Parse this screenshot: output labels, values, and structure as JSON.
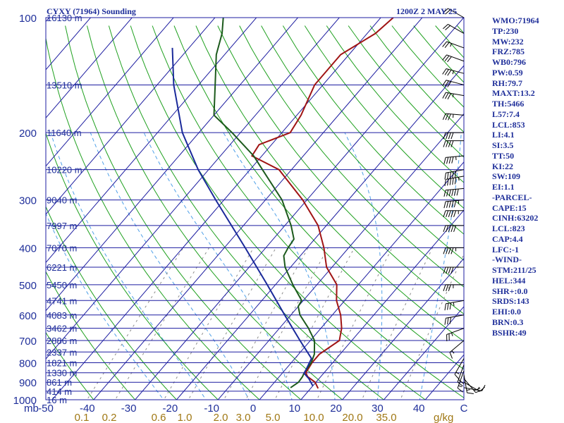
{
  "header": {
    "title": "CYXY (71964) Sounding",
    "valid_time": "1200Z  2 MAY 25"
  },
  "indices": [
    "WMO:71964",
    "TP:230",
    "MW:232",
    "FRZ:785",
    "WB0:796",
    "PW:0.59",
    "RH:79.7",
    "MAXT:13.2",
    "TH:5466",
    "L57:7.4",
    "LCL:853",
    "LI:4.1",
    "SI:3.5",
    "TT:50",
    "KI:22",
    "SW:109",
    "EI:1.1",
    "-PARCEL-",
    "CAPE:15",
    "CINH:63202",
    "LCL:823",
    "CAP:4.4",
    "LFC:-1",
    "-WIND-",
    "STM:211/25",
    "HEL:344",
    "SHR+:0.0",
    "SRDS:143",
    "EHI:0.0",
    "BRN:0.3",
    "BSHR:49"
  ],
  "colors": {
    "isobar": "#1c1ca0",
    "isotherm": "#1c1ca0",
    "dry_adiabat": "#1fa01f",
    "moist_adiabat": "#4fa0e8",
    "mixing_ratio": "#8c8c8c",
    "temperature": "#a01414",
    "dewpoint": "#1c5a1c",
    "parcel": "#1a2a9a",
    "wind_barb": "#000000",
    "axis_text": "#1f2f9a",
    "mixing_text": "#a07814"
  },
  "chart_data": {
    "type": "line",
    "chart_kind": "skew-t log-p sounding",
    "y_axis": {
      "label": "mb",
      "scale": "log",
      "range": [
        1000,
        100
      ],
      "tick_labels": [
        "100",
        "200",
        "300",
        "400",
        "500",
        "600",
        "700",
        "800",
        "900",
        "1000"
      ]
    },
    "x_axis": {
      "label": "C",
      "range": [
        -50,
        50
      ],
      "tick_values": [
        -50,
        -40,
        -30,
        -20,
        -10,
        0,
        10,
        20,
        30,
        40
      ],
      "tick_labels": [
        "-50",
        "-40",
        "-30",
        "-20",
        "-10",
        "0",
        "10",
        "20",
        "30",
        "40"
      ]
    },
    "mixing_ratio_axis": {
      "label": "g/kg",
      "values": [
        0.1,
        0.2,
        0.6,
        1.0,
        2.0,
        3.0,
        5.0,
        10.0,
        20.0,
        35.0
      ],
      "tick_labels": [
        "0.1",
        "0.2",
        "0.6",
        "1.0",
        "2.0",
        "3.0",
        "5.0",
        "10.0",
        "20.0",
        "35.0"
      ]
    },
    "heights": [
      {
        "p": 100,
        "label": "16130 m"
      },
      {
        "p": 150,
        "label": "13510 m"
      },
      {
        "p": 200,
        "label": "11640 m"
      },
      {
        "p": 250,
        "label": "10220 m"
      },
      {
        "p": 300,
        "label": "9040 m"
      },
      {
        "p": 350,
        "label": "7997 m"
      },
      {
        "p": 400,
        "label": "7070 m"
      },
      {
        "p": 450,
        "label": "6221 m"
      },
      {
        "p": 500,
        "label": "5450 m"
      },
      {
        "p": 550,
        "label": "4741 m"
      },
      {
        "p": 600,
        "label": "4083 m"
      },
      {
        "p": 650,
        "label": "3462 m"
      },
      {
        "p": 700,
        "label": "2886 m"
      },
      {
        "p": 750,
        "label": "2337 m"
      },
      {
        "p": 800,
        "label": "1821 m"
      },
      {
        "p": 850,
        "label": "1330 m"
      },
      {
        "p": 900,
        "label": "861 m"
      },
      {
        "p": 950,
        "label": "414 m"
      },
      {
        "p": 1000,
        "label": "16 m"
      }
    ],
    "series": [
      {
        "id": "temperature",
        "points": [
          [
            934,
            11.8
          ],
          [
            900,
            9.8
          ],
          [
            870,
            6.8
          ],
          [
            850,
            5.6
          ],
          [
            800,
            5.0
          ],
          [
            760,
            5.0
          ],
          [
            700,
            7.0
          ],
          [
            650,
            5.0
          ],
          [
            600,
            2.0
          ],
          [
            550,
            -2.0
          ],
          [
            500,
            -5.2
          ],
          [
            450,
            -11.3
          ],
          [
            400,
            -16.0
          ],
          [
            350,
            -22.0
          ],
          [
            300,
            -31.0
          ],
          [
            250,
            -43.0
          ],
          [
            230,
            -52.4
          ],
          [
            215,
            -53.0
          ],
          [
            200,
            -48.0
          ],
          [
            180,
            -49.0
          ],
          [
            150,
            -52.0
          ],
          [
            125,
            -52.0
          ],
          [
            110,
            -48.0
          ],
          [
            100,
            -47.0
          ]
        ]
      },
      {
        "id": "dewpoint",
        "points": [
          [
            930,
            5.0
          ],
          [
            900,
            5.8
          ],
          [
            870,
            5.6
          ],
          [
            850,
            5.2
          ],
          [
            800,
            4.8
          ],
          [
            760,
            3.8
          ],
          [
            700,
            1.0
          ],
          [
            650,
            -3.0
          ],
          [
            600,
            -7.8
          ],
          [
            570,
            -10.0
          ],
          [
            550,
            -10.4
          ],
          [
            500,
            -15.8
          ],
          [
            450,
            -21.3
          ],
          [
            420,
            -24.0
          ],
          [
            400,
            -24.6
          ],
          [
            380,
            -25.0
          ],
          [
            350,
            -28.5
          ],
          [
            300,
            -36.0
          ],
          [
            250,
            -47.0
          ],
          [
            230,
            -52.0
          ],
          [
            200,
            -62.0
          ],
          [
            180,
            -70.0
          ],
          [
            150,
            -76.0
          ],
          [
            125,
            -82.0
          ],
          [
            110,
            -85.0
          ],
          [
            100,
            -88.0
          ]
        ]
      },
      {
        "id": "parcel",
        "points": [
          [
            920,
            10.0
          ],
          [
            880,
            7.5
          ],
          [
            853,
            5.3
          ],
          [
            823,
            4.8
          ],
          [
            780,
            4.0
          ],
          [
            700,
            -2.5
          ],
          [
            600,
            -11.5
          ],
          [
            500,
            -22.0
          ],
          [
            400,
            -35.0
          ],
          [
            300,
            -52.0
          ],
          [
            250,
            -62.5
          ],
          [
            200,
            -74.0
          ],
          [
            150,
            -86.0
          ],
          [
            120,
            -94.0
          ]
        ]
      }
    ],
    "winds": [
      {
        "p": 930,
        "dir": 100,
        "spd": 10
      },
      {
        "p": 900,
        "dir": 120,
        "spd": 15
      },
      {
        "p": 880,
        "dir": 140,
        "spd": 20
      },
      {
        "p": 860,
        "dir": 170,
        "spd": 15
      },
      {
        "p": 840,
        "dir": 200,
        "spd": 15
      },
      {
        "p": 810,
        "dir": 200,
        "spd": 20
      },
      {
        "p": 780,
        "dir": 210,
        "spd": 15
      },
      {
        "p": 700,
        "dir": 230,
        "spd": 15
      },
      {
        "p": 650,
        "dir": 250,
        "spd": 25
      },
      {
        "p": 600,
        "dir": 260,
        "spd": 30
      },
      {
        "p": 550,
        "dir": 260,
        "spd": 35
      },
      {
        "p": 500,
        "dir": 270,
        "spd": 35
      },
      {
        "p": 450,
        "dir": 270,
        "spd": 40
      },
      {
        "p": 400,
        "dir": 270,
        "spd": 45
      },
      {
        "p": 350,
        "dir": 270,
        "spd": 50
      },
      {
        "p": 320,
        "dir": 270,
        "spd": 55
      },
      {
        "p": 300,
        "dir": 265,
        "spd": 55
      },
      {
        "p": 280,
        "dir": 265,
        "spd": 60
      },
      {
        "p": 260,
        "dir": 260,
        "spd": 55
      },
      {
        "p": 250,
        "dir": 260,
        "spd": 50
      },
      {
        "p": 230,
        "dir": 265,
        "spd": 45
      },
      {
        "p": 210,
        "dir": 270,
        "spd": 40
      },
      {
        "p": 200,
        "dir": 270,
        "spd": 40
      },
      {
        "p": 180,
        "dir": 275,
        "spd": 35
      },
      {
        "p": 160,
        "dir": 280,
        "spd": 35
      },
      {
        "p": 150,
        "dir": 285,
        "spd": 30
      },
      {
        "p": 140,
        "dir": 285,
        "spd": 35
      },
      {
        "p": 130,
        "dir": 290,
        "spd": 30
      },
      {
        "p": 120,
        "dir": 290,
        "spd": 25
      },
      {
        "p": 110,
        "dir": 300,
        "spd": 20
      },
      {
        "p": 100,
        "dir": 300,
        "spd": 20
      }
    ]
  }
}
